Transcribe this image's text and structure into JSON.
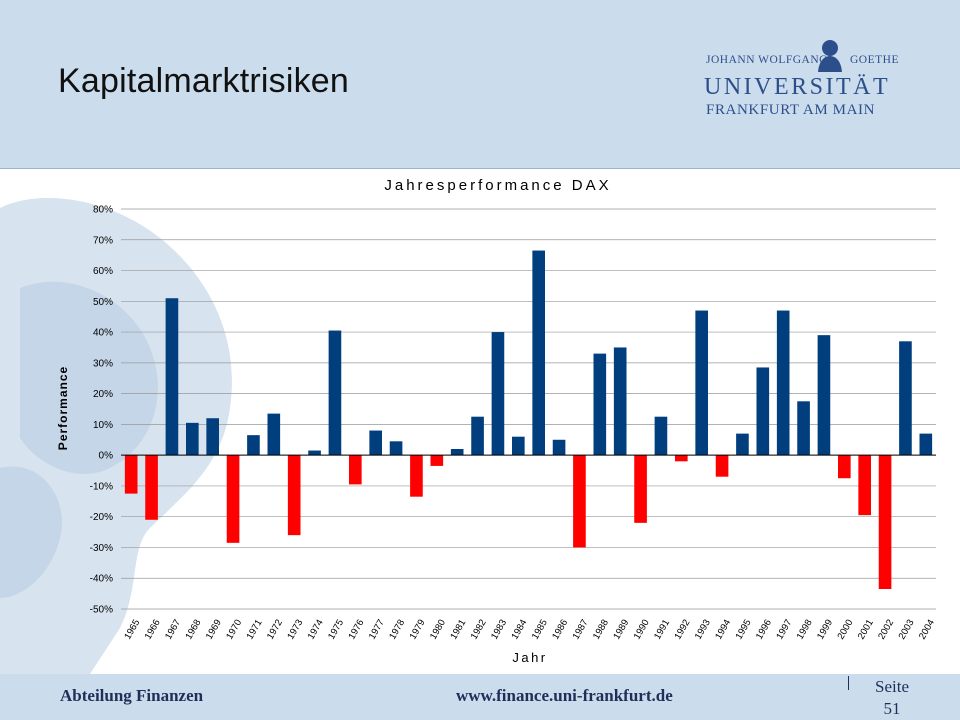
{
  "slide": {
    "title": "Kapitalmarktrisiken"
  },
  "logo": {
    "line1_left": "JOHANN WOLFGANG",
    "line1_right": "GOETHE",
    "line2": "UNIVERSITÄT",
    "line3": "FRANKFURT AM MAIN"
  },
  "footer": {
    "department": "Abteilung Finanzen",
    "url": "www.finance.uni-frankfurt.de",
    "page_label": "Seite",
    "page_number": "51"
  },
  "colors": {
    "positive": "#003e7e",
    "negative": "#ff0000",
    "header_bg": "#cbdcec",
    "footer_text": "#1f2f57"
  },
  "chart_data": {
    "type": "bar",
    "title": "Jahresperformance DAX",
    "xlabel": "Jahr",
    "ylabel": "Performance",
    "ylim": [
      -50,
      80
    ],
    "yticks": [
      80,
      70,
      60,
      50,
      40,
      30,
      20,
      10,
      0,
      -10,
      -20,
      -30,
      -40,
      -50
    ],
    "ytick_labels": [
      "80%",
      "70%",
      "60%",
      "50%",
      "40%",
      "30%",
      "20%",
      "10%",
      "0%",
      "-10%",
      "-20%",
      "-30%",
      "-40%",
      "-50%"
    ],
    "grid": true,
    "categories": [
      "1965",
      "1966",
      "1967",
      "1968",
      "1969",
      "1970",
      "1971",
      "1972",
      "1973",
      "1974",
      "1975",
      "1976",
      "1977",
      "1978",
      "1979",
      "1980",
      "1981",
      "1982",
      "1983",
      "1984",
      "1985",
      "1986",
      "1987",
      "1988",
      "1989",
      "1990",
      "1991",
      "1992",
      "1993",
      "1994",
      "1995",
      "1996",
      "1997",
      "1998",
      "1999",
      "2000",
      "2001",
      "2002",
      "2003",
      "2004"
    ],
    "values": [
      -12.5,
      -21,
      51,
      10.5,
      12,
      -28.5,
      6.5,
      13.5,
      -26,
      1.5,
      40.5,
      -9.5,
      8,
      4.5,
      -13.5,
      -3.5,
      2,
      12.5,
      40,
      6,
      66.5,
      5,
      -30,
      33,
      35,
      -22,
      12.5,
      -2,
      47,
      -7,
      7,
      28.5,
      47,
      17.5,
      39,
      -7.5,
      -19.5,
      -43.5,
      37,
      7
    ]
  }
}
